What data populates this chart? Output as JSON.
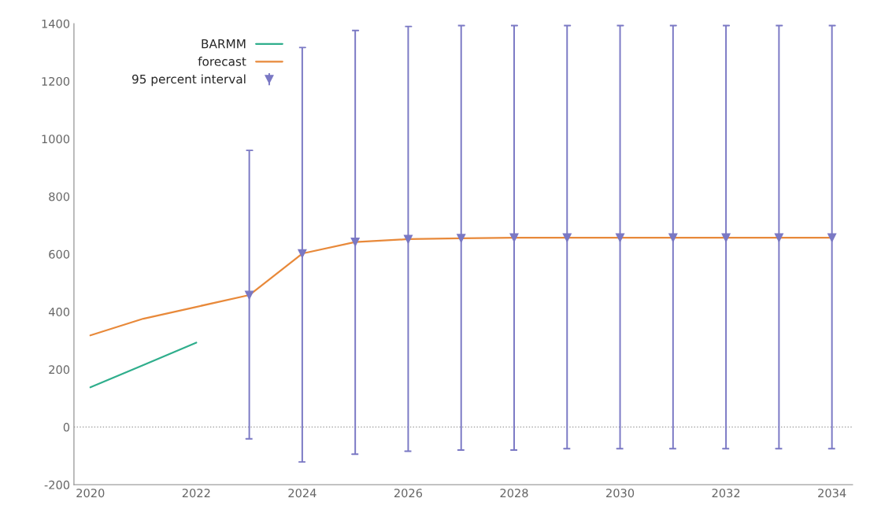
{
  "chart_data": {
    "type": "line",
    "x": [
      2020,
      2021,
      2022,
      2023,
      2024,
      2025,
      2026,
      2027,
      2028,
      2029,
      2030,
      2031,
      2032,
      2033,
      2034
    ],
    "series": [
      {
        "name": "BARMM",
        "color": "#2fae8c",
        "x": [
          2020,
          2021,
          2022
        ],
        "values": [
          138,
          215,
          293
        ]
      },
      {
        "name": "forecast",
        "color": "#e8893a",
        "values": [
          318,
          376,
          417,
          458,
          602,
          642,
          652,
          655,
          657,
          657,
          657,
          657,
          657,
          657,
          657
        ]
      },
      {
        "name": "95 percent interval",
        "type": "scatter",
        "color": "#7a78c4",
        "marker": "triangle",
        "x": [
          2023,
          2024,
          2025,
          2026,
          2027,
          2028,
          2029,
          2030,
          2031,
          2032,
          2033,
          2034
        ],
        "values": [
          458,
          602,
          642,
          652,
          655,
          657,
          657,
          657,
          657,
          657,
          657,
          657
        ],
        "errors": [
          [
            -41,
            960
          ],
          [
            -121,
            1317
          ],
          [
            -94,
            1376
          ],
          [
            -84,
            1390
          ],
          [
            -80,
            1393
          ],
          [
            -80,
            1393
          ],
          [
            -75,
            1393
          ],
          [
            -75,
            1393
          ],
          [
            -75,
            1393
          ],
          [
            -75,
            1393
          ],
          [
            -75,
            1393
          ],
          [
            -75,
            1393
          ]
        ]
      }
    ],
    "xlim": [
      2019.69,
      2034.39
    ],
    "xticks": [
      2020,
      2022,
      2024,
      2026,
      2028,
      2030,
      2032,
      2034
    ],
    "ylim": [
      -200,
      1400
    ],
    "yticks": [
      -200,
      0,
      200,
      400,
      600,
      800,
      1000,
      1200,
      1400
    ],
    "ref_lines": [
      {
        "axis": "y",
        "value": 0,
        "color": "#aaaaaa",
        "line_style": "dotted"
      }
    ],
    "legend": "top left",
    "grid": false
  }
}
